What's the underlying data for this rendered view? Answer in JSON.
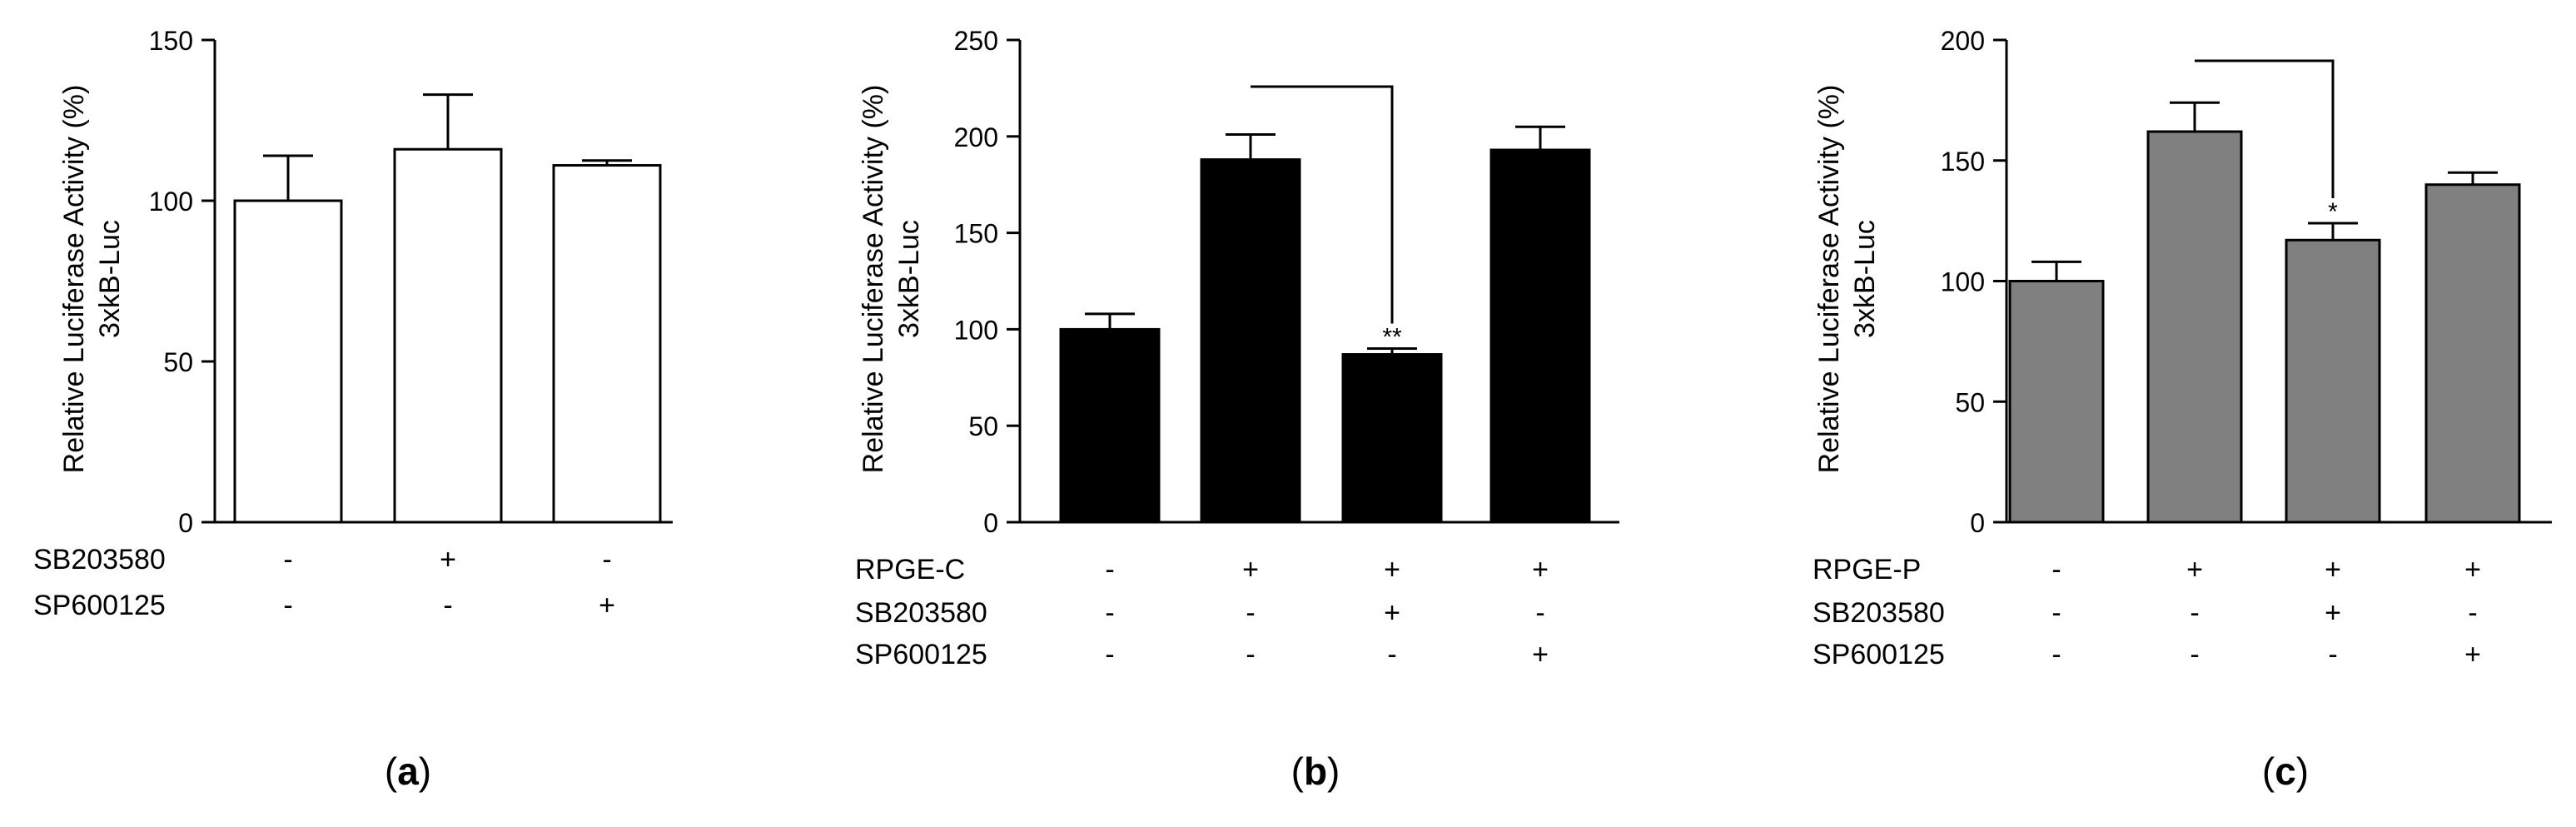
{
  "panels": [
    {
      "id": "a",
      "caption_letter": "a",
      "ylabel_line1": "Relative Luciferase Activity (%)",
      "ylabel_line2": "3xkB-Luc",
      "yticks": [
        "0",
        "50",
        "100",
        "150"
      ],
      "row_labels": [
        "SB203580",
        "SP600125"
      ],
      "signs": [
        [
          "-",
          "+",
          "-"
        ],
        [
          "-",
          "-",
          "+"
        ]
      ],
      "annotations": []
    },
    {
      "id": "b",
      "caption_letter": "b",
      "ylabel_line1": "Relative Luciferase Activity (%)",
      "ylabel_line2": "3xkB-Luc",
      "yticks": [
        "0",
        "50",
        "100",
        "150",
        "200",
        "250"
      ],
      "row_labels": [
        "RPGE-C",
        "SB203580",
        "SP600125"
      ],
      "signs": [
        [
          "-",
          "+",
          "+",
          "+"
        ],
        [
          "-",
          "-",
          "+",
          "-"
        ],
        [
          "-",
          "-",
          "-",
          "+"
        ]
      ],
      "annotations": [
        {
          "text": "**",
          "bar": 2
        }
      ]
    },
    {
      "id": "c",
      "caption_letter": "c",
      "ylabel_line1": "Relative Luciferase Activity (%)",
      "ylabel_line2": "3xkB-Luc",
      "yticks": [
        "0",
        "50",
        "100",
        "150",
        "200"
      ],
      "row_labels": [
        "RPGE-P",
        "SB203580",
        "SP600125"
      ],
      "signs": [
        [
          "-",
          "+",
          "+",
          "+"
        ],
        [
          "-",
          "-",
          "+",
          "-"
        ],
        [
          "-",
          "-",
          "-",
          "+"
        ]
      ],
      "annotations": [
        {
          "text": "*",
          "bar": 2
        }
      ]
    }
  ],
  "chart_data": [
    {
      "type": "bar",
      "bar_color": "#ffffff",
      "ylim": [
        0,
        150
      ],
      "values": [
        100,
        116,
        111
      ],
      "errors": [
        14,
        17,
        1.5
      ],
      "ylabel": "Relative Luciferase Activity (%) 3xkB-Luc",
      "significance": []
    },
    {
      "type": "bar",
      "bar_color": "#000000",
      "ylim": [
        0,
        250
      ],
      "values": [
        100,
        188,
        87,
        193
      ],
      "errors": [
        8,
        13,
        3,
        12
      ],
      "ylabel": "Relative Luciferase Activity (%) 3xkB-Luc",
      "significance": [
        {
          "from_bar": 1,
          "to_bar": 2,
          "label": "**"
        }
      ]
    },
    {
      "type": "bar",
      "bar_color": "#808080",
      "ylim": [
        0,
        200
      ],
      "values": [
        100,
        162,
        117,
        140
      ],
      "errors": [
        8,
        12,
        7,
        5
      ],
      "ylabel": "Relative Luciferase Activity (%) 3xkB-Luc",
      "significance": [
        {
          "from_bar": 1,
          "to_bar": 2,
          "label": "*"
        }
      ]
    }
  ]
}
